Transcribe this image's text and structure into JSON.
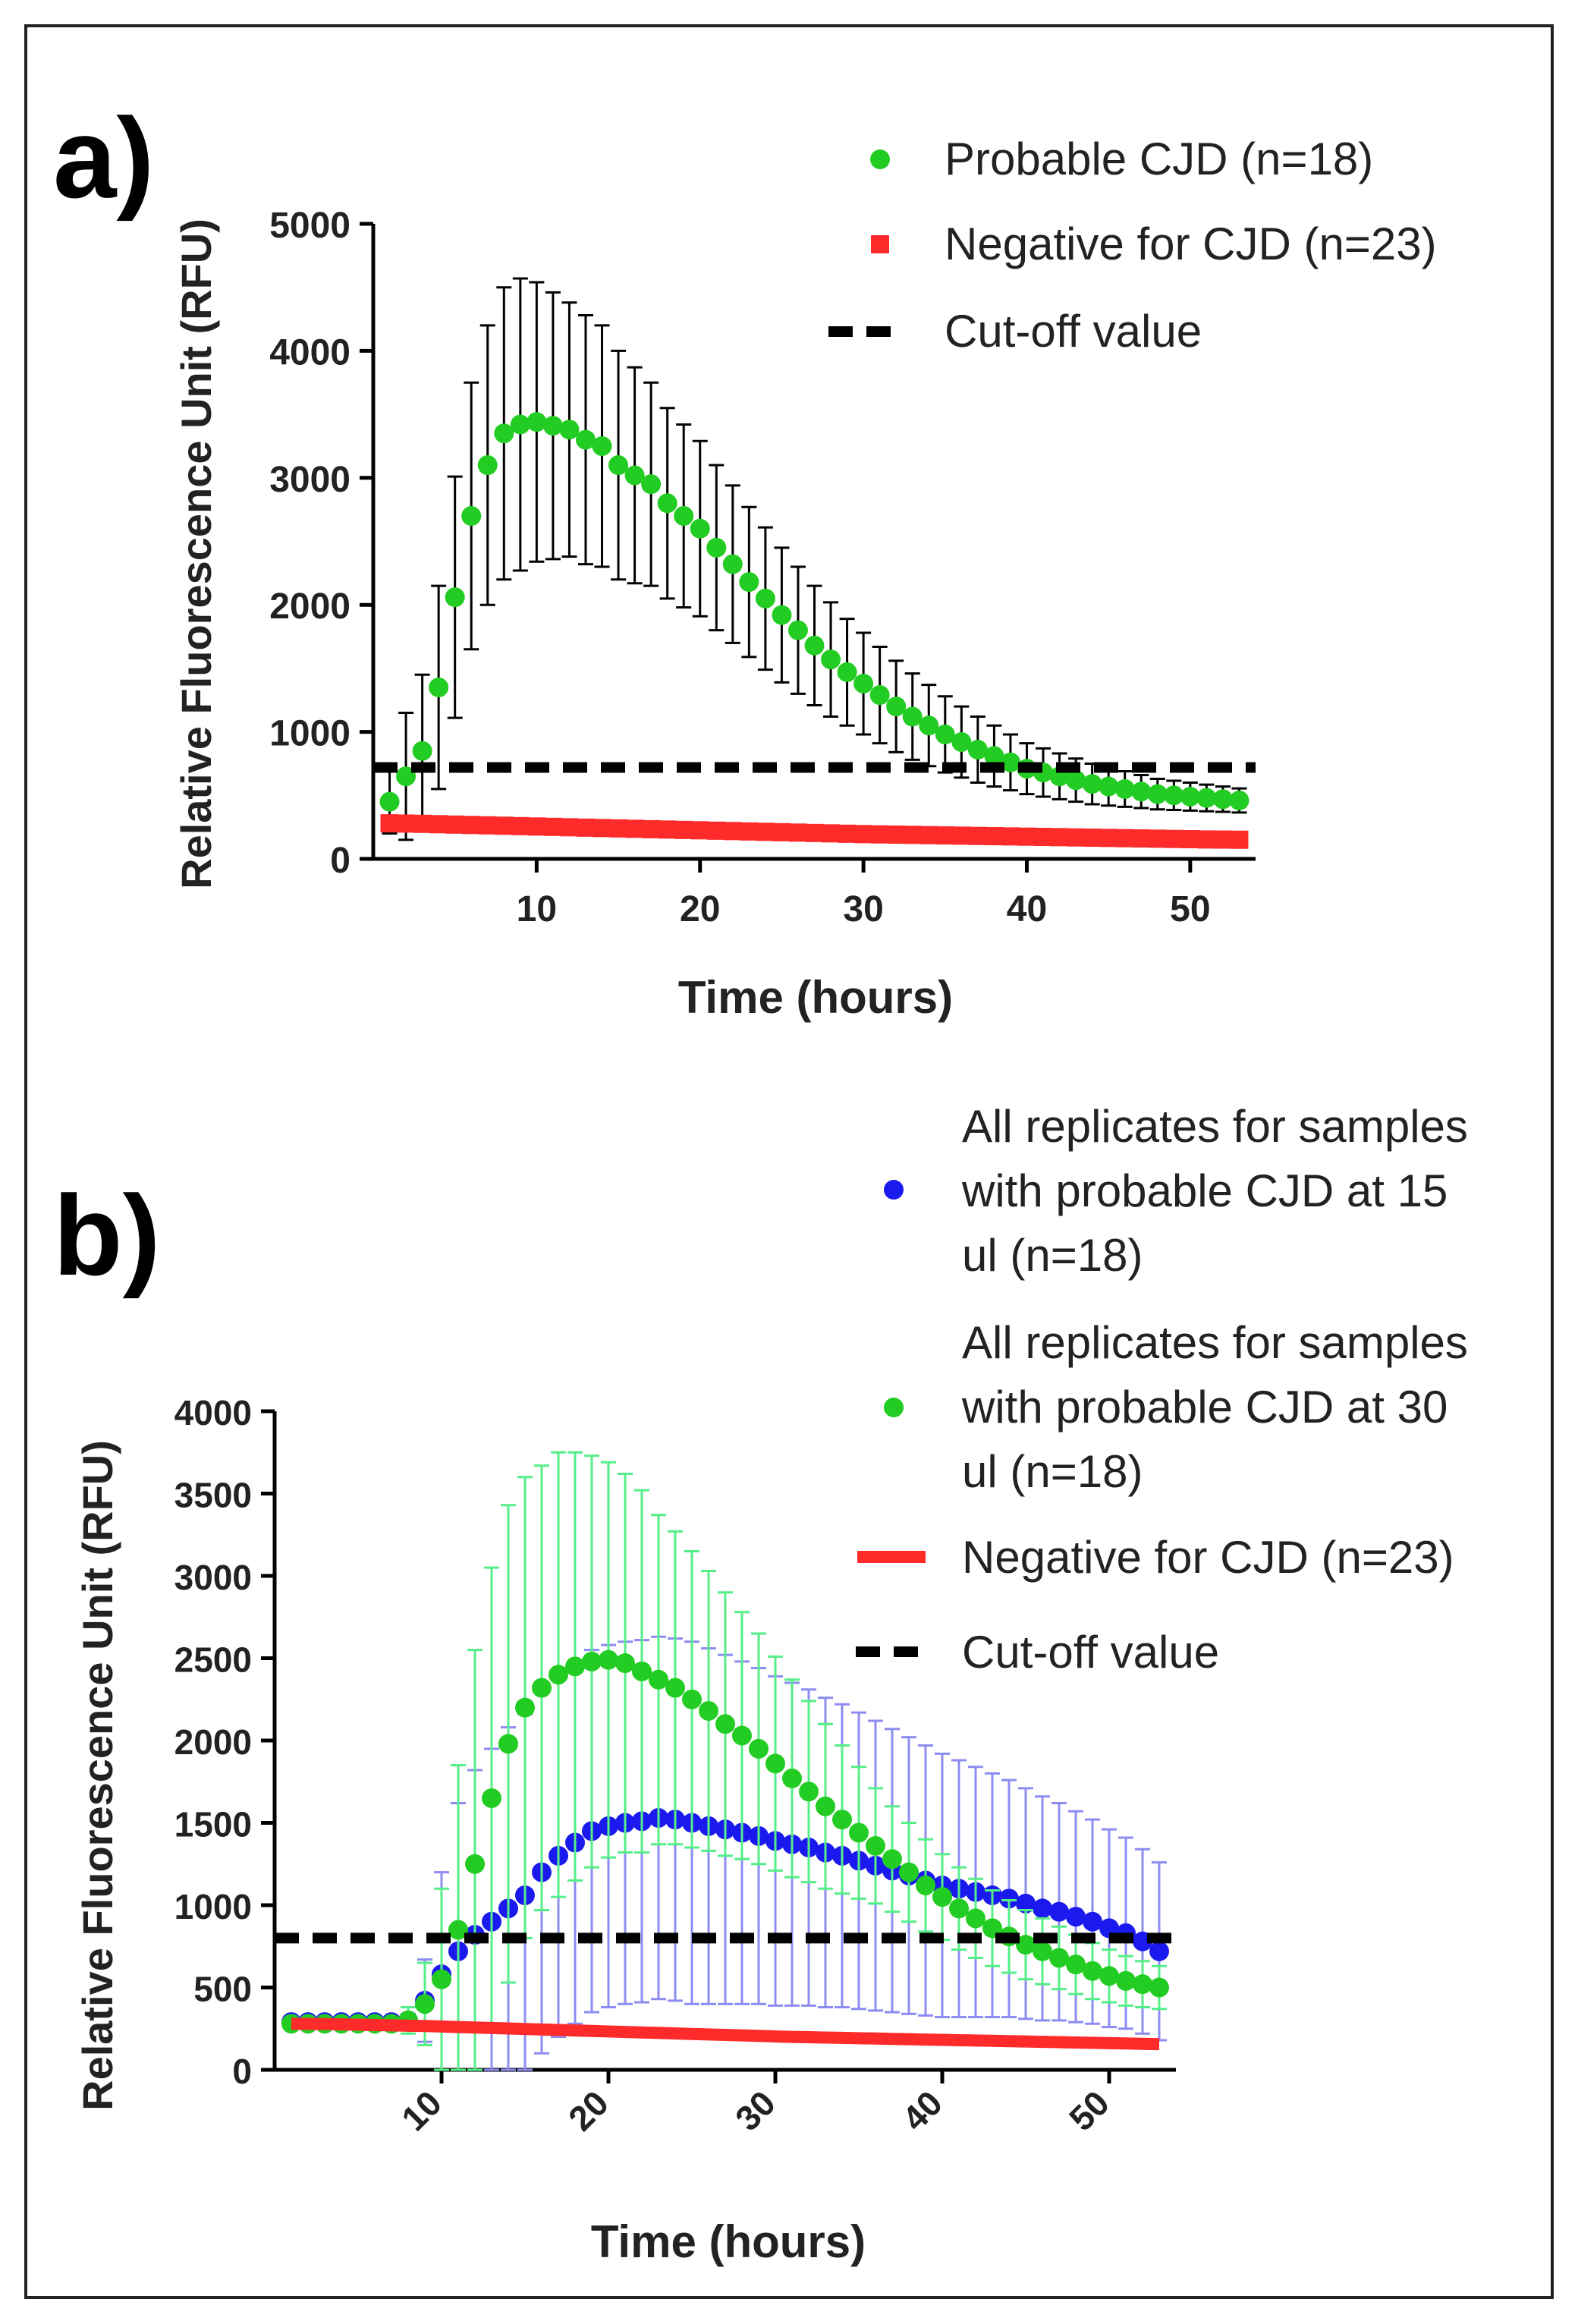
{
  "chart_data": [
    {
      "panel_label": "a)",
      "type": "scatter",
      "xlabel": "Time (hours)",
      "ylabel": "Relative Fluorescence Unit (RFU)",
      "xlim": [
        0,
        54
      ],
      "ylim": [
        0,
        5000
      ],
      "x_ticks": [
        10,
        20,
        30,
        40,
        50
      ],
      "y_ticks": [
        0,
        1000,
        2000,
        3000,
        4000,
        5000
      ],
      "series": [
        {
          "name": "Probable CJD (n=18)",
          "color": "#22cc22",
          "marker": "circle",
          "x": [
            1,
            2,
            3,
            4,
            5,
            6,
            7,
            8,
            9,
            10,
            11,
            12,
            13,
            14,
            15,
            16,
            17,
            18,
            19,
            20,
            21,
            22,
            23,
            24,
            25,
            26,
            27,
            28,
            29,
            30,
            31,
            32,
            33,
            34,
            35,
            36,
            37,
            38,
            39,
            40,
            41,
            42,
            43,
            44,
            45,
            46,
            47,
            48,
            49,
            50,
            51,
            52,
            53
          ],
          "values": [
            450,
            650,
            850,
            1350,
            2060,
            2700,
            3100,
            3350,
            3420,
            3440,
            3410,
            3380,
            3300,
            3250,
            3100,
            3020,
            2950,
            2800,
            2700,
            2600,
            2450,
            2320,
            2180,
            2050,
            1920,
            1800,
            1680,
            1570,
            1470,
            1380,
            1290,
            1200,
            1120,
            1050,
            980,
            920,
            860,
            810,
            760,
            710,
            680,
            650,
            620,
            590,
            570,
            550,
            530,
            510,
            500,
            490,
            480,
            470,
            460
          ],
          "errors": [
            250,
            500,
            600,
            800,
            950,
            1050,
            1100,
            1150,
            1150,
            1100,
            1050,
            1000,
            980,
            950,
            900,
            850,
            800,
            750,
            720,
            690,
            650,
            620,
            590,
            560,
            530,
            500,
            470,
            450,
            420,
            400,
            380,
            360,
            340,
            320,
            300,
            280,
            260,
            240,
            220,
            200,
            190,
            180,
            170,
            160,
            150,
            140,
            130,
            120,
            115,
            110,
            105,
            100,
            95
          ]
        },
        {
          "name": "Negative for CJD (n=23)",
          "color": "#ff2a2a",
          "marker": "square",
          "x": [
            1,
            2,
            3,
            4,
            5,
            6,
            7,
            8,
            9,
            10,
            11,
            12,
            13,
            14,
            15,
            16,
            17,
            18,
            19,
            20,
            21,
            22,
            23,
            24,
            25,
            26,
            27,
            28,
            29,
            30,
            31,
            32,
            33,
            34,
            35,
            36,
            37,
            38,
            39,
            40,
            41,
            42,
            43,
            44,
            45,
            46,
            47,
            48,
            49,
            50,
            51,
            52,
            53
          ],
          "values": [
            280,
            278,
            276,
            273,
            270,
            267,
            264,
            261,
            258,
            255,
            252,
            249,
            246,
            243,
            240,
            237,
            234,
            231,
            228,
            225,
            222,
            219,
            216,
            213,
            210,
            207,
            204,
            201,
            198,
            195,
            193,
            191,
            189,
            187,
            185,
            183,
            181,
            179,
            177,
            175,
            173,
            171,
            169,
            167,
            165,
            163,
            161,
            159,
            157,
            155,
            153,
            152,
            151
          ],
          "errors": [
            60,
            60,
            60,
            58,
            58,
            56,
            56,
            55,
            55,
            54,
            54,
            53,
            52,
            52,
            51,
            50,
            50,
            49,
            48,
            48,
            47,
            46,
            46,
            45,
            45,
            44,
            44,
            43,
            43,
            42,
            42,
            41,
            41,
            40,
            40,
            40,
            40,
            40,
            40,
            40,
            40,
            40,
            40,
            40,
            40,
            40,
            40,
            40,
            40,
            40,
            40,
            40,
            40
          ]
        },
        {
          "name": "Cut-off value",
          "color": "#000000",
          "line": "dashed",
          "y": 720
        }
      ],
      "legend_position": "top-right"
    },
    {
      "panel_label": "b)",
      "type": "scatter",
      "xlabel": "Time (hours)",
      "ylabel": "Relative Fluorescence Unit (RFU)",
      "xlim": [
        0,
        54
      ],
      "ylim": [
        0,
        4000
      ],
      "x_ticks": [
        10,
        20,
        30,
        40,
        50
      ],
      "y_ticks": [
        0,
        500,
        1000,
        1500,
        2000,
        2500,
        3000,
        3500,
        4000
      ],
      "series": [
        {
          "name": "All replicates for samples with probable CJD at 15 ul (n=18)",
          "color": "#1a1aee",
          "error_color": "#8c8cf2",
          "marker": "circle",
          "x": [
            1,
            2,
            3,
            4,
            5,
            6,
            7,
            8,
            9,
            10,
            11,
            12,
            13,
            14,
            15,
            16,
            17,
            18,
            19,
            20,
            21,
            22,
            23,
            24,
            25,
            26,
            27,
            28,
            29,
            30,
            31,
            32,
            33,
            34,
            35,
            36,
            37,
            38,
            39,
            40,
            41,
            42,
            43,
            44,
            45,
            46,
            47,
            48,
            49,
            50,
            51,
            52,
            53
          ],
          "values": [
            290,
            290,
            290,
            290,
            290,
            290,
            290,
            300,
            420,
            580,
            720,
            820,
            900,
            980,
            1060,
            1200,
            1300,
            1380,
            1450,
            1480,
            1500,
            1510,
            1530,
            1520,
            1500,
            1480,
            1460,
            1440,
            1420,
            1390,
            1370,
            1350,
            1320,
            1300,
            1270,
            1240,
            1210,
            1180,
            1150,
            1120,
            1100,
            1080,
            1060,
            1040,
            1010,
            980,
            960,
            930,
            900,
            860,
            830,
            780,
            720
          ],
          "errors": [
            0,
            0,
            0,
            0,
            0,
            0,
            0,
            40,
            250,
            620,
            900,
            1000,
            1050,
            1100,
            1100,
            1100,
            1100,
            1100,
            1100,
            1100,
            1100,
            1100,
            1100,
            1100,
            1100,
            1080,
            1060,
            1040,
            1020,
            1000,
            980,
            960,
            940,
            920,
            900,
            880,
            860,
            840,
            820,
            800,
            780,
            760,
            740,
            720,
            700,
            680,
            660,
            640,
            620,
            600,
            580,
            560,
            540
          ]
        },
        {
          "name": "All replicates for samples with probable CJD at 30 ul (n=18)",
          "color": "#22cc22",
          "error_color": "#55ee88",
          "marker": "circle",
          "x": [
            1,
            2,
            3,
            4,
            5,
            6,
            7,
            8,
            9,
            10,
            11,
            12,
            13,
            14,
            15,
            16,
            17,
            18,
            19,
            20,
            21,
            22,
            23,
            24,
            25,
            26,
            27,
            28,
            29,
            30,
            31,
            32,
            33,
            34,
            35,
            36,
            37,
            38,
            39,
            40,
            41,
            42,
            43,
            44,
            45,
            46,
            47,
            48,
            49,
            50,
            51,
            52,
            53
          ],
          "values": [
            280,
            280,
            280,
            280,
            280,
            280,
            280,
            300,
            400,
            550,
            850,
            1250,
            1650,
            1980,
            2200,
            2320,
            2400,
            2450,
            2480,
            2490,
            2470,
            2420,
            2370,
            2320,
            2250,
            2180,
            2100,
            2030,
            1950,
            1860,
            1770,
            1690,
            1600,
            1520,
            1440,
            1360,
            1280,
            1200,
            1120,
            1050,
            980,
            920,
            860,
            810,
            760,
            720,
            680,
            640,
            600,
            570,
            540,
            520,
            500
          ],
          "errors": [
            0,
            0,
            0,
            0,
            0,
            0,
            0,
            80,
            250,
            550,
            1000,
            1300,
            1400,
            1450,
            1400,
            1350,
            1350,
            1300,
            1250,
            1200,
            1150,
            1100,
            1000,
            950,
            900,
            850,
            800,
            750,
            700,
            650,
            600,
            550,
            500,
            450,
            400,
            350,
            320,
            300,
            280,
            260,
            250,
            240,
            230,
            220,
            210,
            200,
            190,
            180,
            170,
            160,
            150,
            140,
            130
          ]
        },
        {
          "name": "Negative for CJD (n=23)",
          "color": "#ff2a2a",
          "marker": "line",
          "x": [
            1,
            2,
            3,
            4,
            5,
            6,
            7,
            8,
            9,
            10,
            11,
            12,
            13,
            14,
            15,
            16,
            17,
            18,
            19,
            20,
            21,
            22,
            23,
            24,
            25,
            26,
            27,
            28,
            29,
            30,
            31,
            32,
            33,
            34,
            35,
            36,
            37,
            38,
            39,
            40,
            41,
            42,
            43,
            44,
            45,
            46,
            47,
            48,
            49,
            50,
            51,
            52,
            53
          ],
          "values": [
            280,
            279,
            278,
            276,
            274,
            272,
            270,
            268,
            266,
            263,
            260,
            257,
            254,
            251,
            248,
            245,
            242,
            239,
            236,
            233,
            230,
            227,
            224,
            221,
            218,
            215,
            212,
            209,
            206,
            203,
            200,
            198,
            196,
            194,
            192,
            190,
            188,
            186,
            184,
            182,
            180,
            178,
            176,
            174,
            172,
            170,
            168,
            166,
            164,
            162,
            160,
            158,
            156
          ]
        },
        {
          "name": "Cut-off value",
          "color": "#000000",
          "line": "dashed",
          "y": 800
        }
      ],
      "legend_position": "top-right"
    }
  ]
}
